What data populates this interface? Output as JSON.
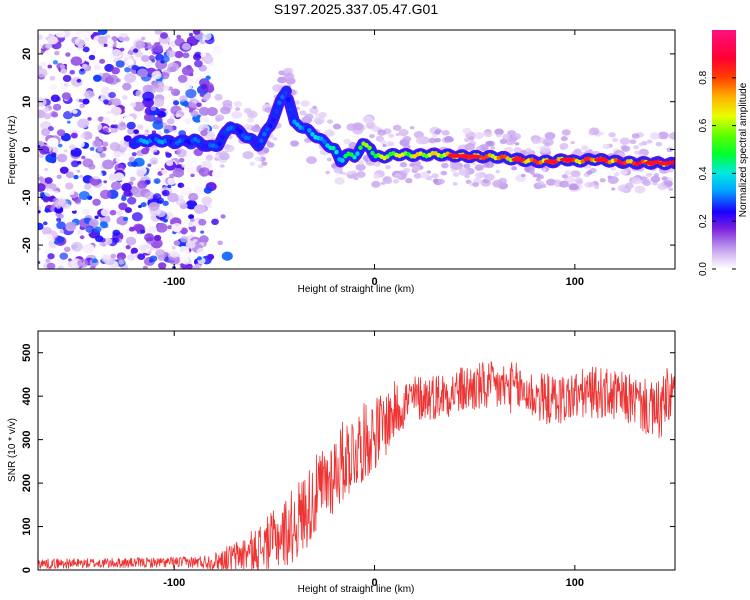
{
  "figure_title": "S197.2025.337.05.47.G01",
  "chart_data": [
    {
      "type": "heatmap",
      "title": "S197.2025.337.05.47.G01",
      "xlabel": "Height of straight line (km)",
      "ylabel": "Frequency (Hz)",
      "xlim": [
        -168,
        150
      ],
      "ylim": [
        -25,
        25
      ],
      "xticks": [
        -100,
        0,
        100
      ],
      "yticks": [
        -20,
        -10,
        0,
        10,
        20
      ],
      "colorbar": {
        "label": "Normalized spectral amplitude",
        "range": [
          0,
          1
        ],
        "ticks": [
          0.0,
          0.2,
          0.4,
          0.6,
          0.8
        ],
        "tick_labels": [
          "0.0",
          "0.2",
          "0.4",
          "0.6",
          "0.8"
        ],
        "colors": [
          "#ffffff",
          "#e0c8f5",
          "#8a2be2",
          "#0000ff",
          "#00e0ff",
          "#00ff00",
          "#ffff00",
          "#ff7f00",
          "#ff0000",
          "#ff1493"
        ]
      },
      "ridge": {
        "x": [
          -120,
          -110,
          -100,
          -90,
          -83,
          -78,
          -72,
          -65,
          -58,
          -52,
          -47,
          -44,
          -40,
          -35,
          -30,
          -25,
          -20,
          -17,
          -14,
          -10,
          -6,
          -2,
          0,
          5,
          10,
          20,
          30,
          40,
          50,
          60,
          70,
          80,
          90,
          95,
          100,
          110,
          120,
          130,
          140,
          150
        ],
        "y": [
          1.5,
          2.0,
          1.5,
          2.0,
          0.5,
          1.0,
          5.0,
          3.0,
          1.0,
          5.0,
          10.0,
          12.5,
          5.5,
          4.5,
          3.0,
          1.5,
          0.0,
          -2.5,
          -1.0,
          -1.5,
          1.0,
          0.5,
          -1.5,
          -1.5,
          -1.0,
          -1.2,
          -1.0,
          -1.3,
          -1.5,
          -1.5,
          -2.0,
          -2.5,
          -2.5,
          -2.0,
          -2.5,
          -2.0,
          -2.5,
          -2.8,
          -2.8,
          -3.0
        ],
        "amplitude": [
          0.35,
          0.35,
          0.3,
          0.3,
          0.3,
          0.3,
          0.3,
          0.3,
          0.3,
          0.3,
          0.3,
          0.3,
          0.35,
          0.35,
          0.4,
          0.4,
          0.45,
          0.45,
          0.5,
          0.5,
          0.6,
          0.6,
          0.6,
          0.65,
          0.65,
          0.7,
          0.7,
          0.8,
          0.85,
          0.8,
          0.85,
          0.85,
          0.85,
          0.85,
          0.85,
          0.85,
          0.9,
          0.9,
          0.9,
          0.9
        ],
        "noise_extent_x": [
          -168,
          -82
        ]
      }
    },
    {
      "type": "line",
      "xlabel": "Height of straight line (km)",
      "ylabel": "SNR (10 * v/v)",
      "xlim": [
        -168,
        150
      ],
      "ylim": [
        0,
        550
      ],
      "xticks": [
        -100,
        0,
        100
      ],
      "yticks": [
        0,
        100,
        200,
        300,
        400,
        500
      ],
      "color": "#ee3333",
      "series": [
        {
          "name": "SNR",
          "x": [
            -168,
            -150,
            -130,
            -110,
            -90,
            -80,
            -70,
            -60,
            -50,
            -45,
            -40,
            -35,
            -30,
            -25,
            -20,
            -15,
            -10,
            -5,
            0,
            5,
            10,
            15,
            20,
            30,
            40,
            50,
            60,
            70,
            80,
            90,
            100,
            110,
            120,
            130,
            140,
            145,
            150
          ],
          "values": [
            15,
            15,
            16,
            17,
            18,
            20,
            30,
            45,
            70,
            85,
            105,
            135,
            165,
            195,
            225,
            255,
            275,
            295,
            315,
            335,
            365,
            385,
            395,
            400,
            410,
            420,
            420,
            420,
            400,
            390,
            400,
            410,
            400,
            390,
            360,
            380,
            410
          ],
          "noise_amplitude": [
            12,
            12,
            12,
            12,
            14,
            20,
            35,
            50,
            70,
            80,
            90,
            90,
            95,
            95,
            95,
            95,
            95,
            90,
            85,
            80,
            70,
            60,
            55,
            55,
            55,
            60,
            60,
            60,
            60,
            60,
            60,
            60,
            60,
            60,
            70,
            80,
            80
          ]
        }
      ]
    }
  ]
}
